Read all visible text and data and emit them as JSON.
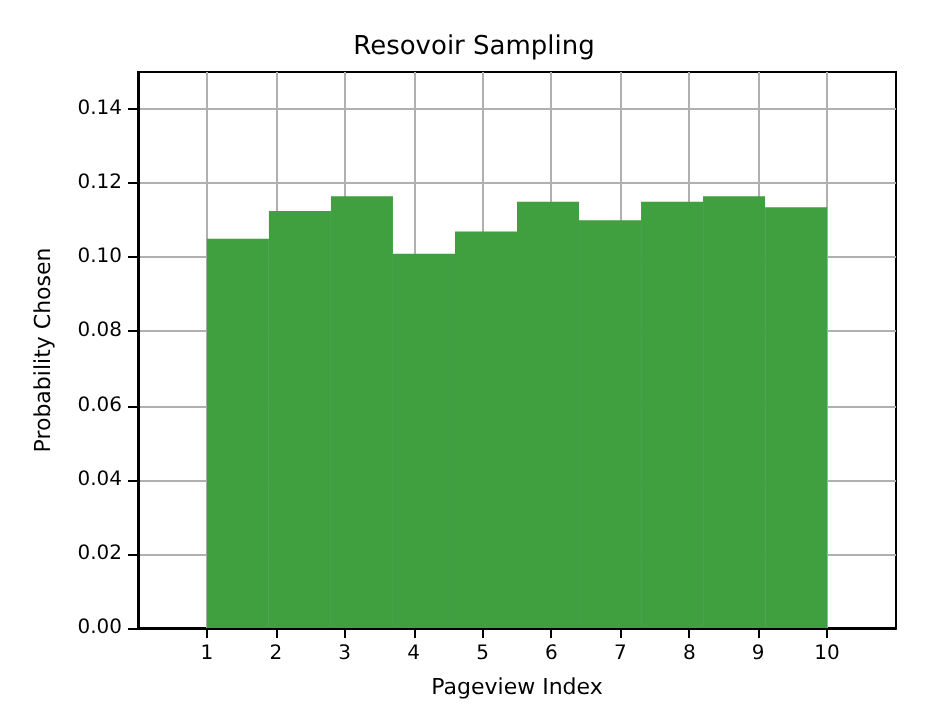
{
  "chart_data": {
    "type": "histogram",
    "title": "Resovoir Sampling",
    "xlabel": "Pageview Index",
    "ylabel": "Probability Chosen",
    "bins": [
      1,
      1.9,
      2.8,
      3.7,
      4.6,
      5.5,
      6.4,
      7.3,
      8.2,
      9.1,
      10
    ],
    "values": [
      0.105,
      0.1125,
      0.1165,
      0.101,
      0.107,
      0.115,
      0.11,
      0.115,
      0.1165,
      0.1135
    ],
    "color": "#40a040",
    "xlim": [
      0,
      11
    ],
    "xticks": [
      1,
      2,
      3,
      4,
      5,
      6,
      7,
      8,
      9,
      10
    ],
    "ylim": [
      0,
      0.15
    ],
    "yticks": [
      {
        "value": 0,
        "label": "0.00"
      },
      {
        "value": 0.02,
        "label": "0.02"
      },
      {
        "value": 0.04,
        "label": "0.04"
      },
      {
        "value": 0.06,
        "label": "0.06"
      },
      {
        "value": 0.08,
        "label": "0.08"
      },
      {
        "value": 0.1,
        "label": "0.10"
      },
      {
        "value": 0.12,
        "label": "0.12"
      },
      {
        "value": 0.14,
        "label": "0.14"
      }
    ],
    "grid": true
  }
}
